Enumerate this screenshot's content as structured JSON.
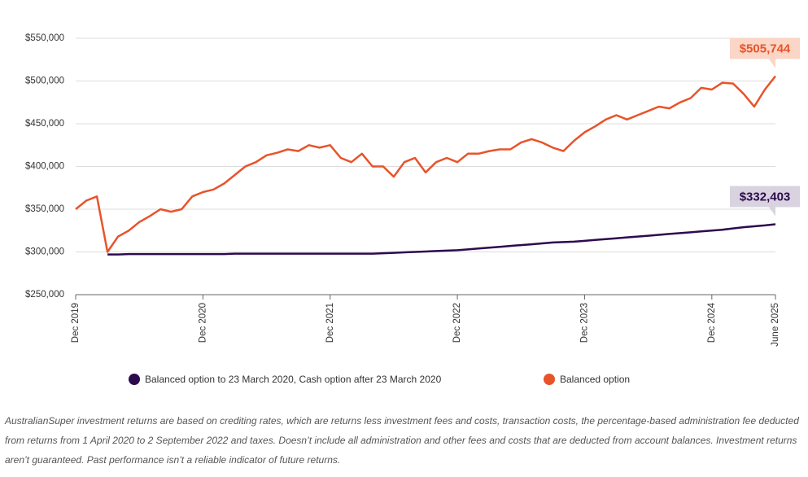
{
  "chart_data": {
    "type": "line",
    "x": [
      "Dec 2019",
      "Jan 2020",
      "Feb 2020",
      "Mar 2020",
      "Apr 2020",
      "May 2020",
      "Jun 2020",
      "Jul 2020",
      "Aug 2020",
      "Sep 2020",
      "Oct 2020",
      "Nov 2020",
      "Dec 2020",
      "Jan 2021",
      "Feb 2021",
      "Mar 2021",
      "Apr 2021",
      "May 2021",
      "Jun 2021",
      "Jul 2021",
      "Aug 2021",
      "Sep 2021",
      "Oct 2021",
      "Nov 2021",
      "Dec 2021",
      "Jan 2022",
      "Feb 2022",
      "Mar 2022",
      "Apr 2022",
      "May 2022",
      "Jun 2022",
      "Jul 2022",
      "Aug 2022",
      "Sep 2022",
      "Oct 2022",
      "Nov 2022",
      "Dec 2022",
      "Jan 2023",
      "Feb 2023",
      "Mar 2023",
      "Apr 2023",
      "May 2023",
      "Jun 2023",
      "Jul 2023",
      "Aug 2023",
      "Sep 2023",
      "Oct 2023",
      "Nov 2023",
      "Dec 2023",
      "Jan 2024",
      "Feb 2024",
      "Mar 2024",
      "Apr 2024",
      "May 2024",
      "Jun 2024",
      "Jul 2024",
      "Aug 2024",
      "Sep 2024",
      "Oct 2024",
      "Nov 2024",
      "Dec 2024",
      "Jan 2025",
      "Feb 2025",
      "Mar 2025",
      "Apr 2025",
      "May 2025",
      "June 2025"
    ],
    "series": [
      {
        "name": "Balanced option to 23 March 2020, Cash option after 23 March 2020",
        "color": "#2d0a4e",
        "values": [
          null,
          null,
          null,
          297000,
          297000,
          297500,
          297500,
          297500,
          297500,
          297500,
          297500,
          297500,
          297500,
          297500,
          297500,
          298000,
          298000,
          298000,
          298000,
          298000,
          298000,
          298000,
          298000,
          298000,
          298000,
          298000,
          298000,
          298000,
          298000,
          298500,
          299000,
          299500,
          300000,
          300500,
          301000,
          301500,
          302000,
          303000,
          304000,
          305000,
          306000,
          307000,
          308000,
          309000,
          310000,
          311000,
          311500,
          312000,
          313000,
          314000,
          315000,
          316000,
          317000,
          318000,
          319000,
          320000,
          321000,
          322000,
          323000,
          324000,
          325000,
          326000,
          327500,
          329000,
          330000,
          331000,
          332403
        ],
        "value_labels": [
          null,
          null,
          null,
          null,
          null,
          null,
          null,
          null,
          null,
          null,
          null,
          null,
          null,
          null,
          null,
          null,
          null,
          null,
          null,
          null,
          null,
          null,
          null,
          null,
          null,
          null,
          null,
          null,
          null,
          null,
          null,
          null,
          null,
          null,
          null,
          null,
          null,
          null,
          null,
          null,
          null,
          null,
          null,
          null,
          null,
          null,
          null,
          null,
          null,
          null,
          null,
          null,
          null,
          null,
          null,
          null,
          null,
          null,
          null,
          null,
          null,
          null,
          null,
          null,
          null,
          null,
          "$332,403"
        ]
      },
      {
        "name": "Balanced option",
        "color": "#e8532a",
        "values": [
          350000,
          360000,
          365000,
          300000,
          318000,
          325000,
          335000,
          342000,
          350000,
          347000,
          350000,
          365000,
          370000,
          373000,
          380000,
          390000,
          400000,
          405000,
          413000,
          416000,
          420000,
          418000,
          425000,
          422000,
          425000,
          410000,
          405000,
          415000,
          400000,
          400000,
          388000,
          405000,
          410000,
          393000,
          405000,
          410000,
          405000,
          415000,
          415000,
          418000,
          420000,
          420000,
          428000,
          432000,
          428000,
          422000,
          418000,
          430000,
          440000,
          447000,
          455000,
          460000,
          455000,
          460000,
          465000,
          470000,
          468000,
          475000,
          480000,
          492000,
          490000,
          498000,
          497000,
          485000,
          470000,
          490000,
          505744
        ],
        "value_labels": [
          null,
          null,
          null,
          null,
          null,
          null,
          null,
          null,
          null,
          null,
          null,
          null,
          null,
          null,
          null,
          null,
          null,
          null,
          null,
          null,
          null,
          null,
          null,
          null,
          null,
          null,
          null,
          null,
          null,
          null,
          null,
          null,
          null,
          null,
          null,
          null,
          null,
          null,
          null,
          null,
          null,
          null,
          null,
          null,
          null,
          null,
          null,
          null,
          null,
          null,
          null,
          null,
          null,
          null,
          null,
          null,
          null,
          null,
          null,
          null,
          null,
          null,
          null,
          null,
          null,
          null,
          "$505,744"
        ]
      }
    ],
    "xticks": [
      "Dec 2019",
      "Dec 2020",
      "Dec 2021",
      "Dec 2022",
      "Dec 2023",
      "Dec 2024",
      "June 2025"
    ],
    "ylim": [
      250000,
      550000
    ],
    "yticks": [
      {
        "value": 250000,
        "label": "$250,000"
      },
      {
        "value": 300000,
        "label": "$300,000"
      },
      {
        "value": 350000,
        "label": "$350,000"
      },
      {
        "value": 400000,
        "label": "$400,000"
      },
      {
        "value": 450000,
        "label": "$450,000"
      },
      {
        "value": 500000,
        "label": "$500,000"
      },
      {
        "value": 550000,
        "label": "$550,000"
      }
    ],
    "grid": true,
    "note": "AustralianSuper investment returns are based on crediting rates, which are returns less investment fees and costs, transaction costs, the percentage-based administration fee deducted from returns from 1 April 2020 to 2 September 2022 and taxes. Doesn’t include all administration and other fees and costs that are deducted from account balances. Investment returns aren’t guaranteed. Past performance isn’t a reliable indicator of future returns."
  }
}
